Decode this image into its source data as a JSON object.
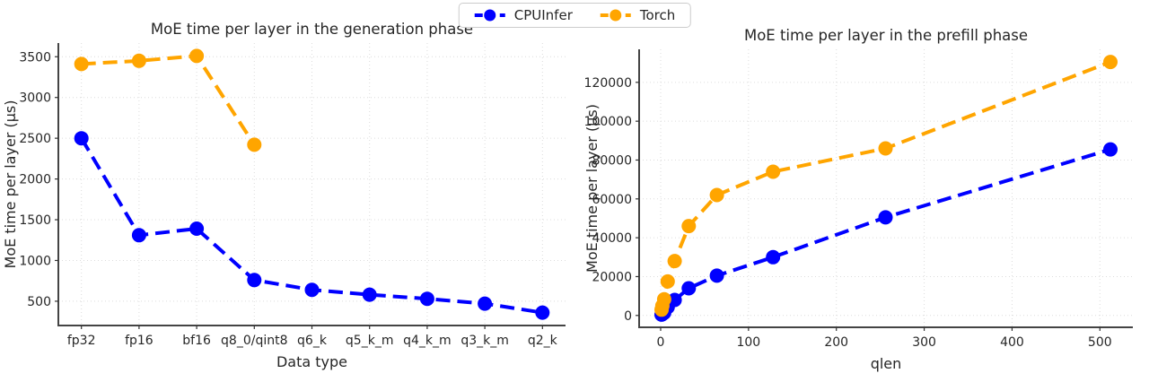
{
  "figure": {
    "background": "#ffffff"
  },
  "legend": {
    "items": [
      {
        "label": "CPUInfer",
        "color": "#0000ff"
      },
      {
        "label": "Torch",
        "color": "#ffa500"
      }
    ]
  },
  "chart_data": [
    {
      "type": "line",
      "title": "MoE time per layer in the generation phase",
      "xlabel": "Data type",
      "ylabel": "MoE time per layer (µs)",
      "categories": [
        "fp32",
        "fp16",
        "bf16",
        "q8_0/qint8",
        "q6_k",
        "q5_k_m",
        "q4_k_m",
        "q3_k_m",
        "q2_k"
      ],
      "series": [
        {
          "name": "CPUInfer",
          "color": "#0000ff",
          "values": [
            2500,
            1310,
            1390,
            760,
            640,
            580,
            530,
            470,
            360
          ]
        },
        {
          "name": "Torch",
          "color": "#ffa500",
          "values": [
            3410,
            3450,
            3510,
            2420,
            null,
            null,
            null,
            null,
            null
          ]
        }
      ],
      "yticks": [
        500,
        1000,
        1500,
        2000,
        2500,
        3000,
        3500
      ],
      "ylim": [
        202,
        3668
      ],
      "grid": true,
      "line_style": "dashed",
      "legend_position": "top-center-figure"
    },
    {
      "type": "line",
      "title": "MoE time per layer in the prefill phase",
      "xlabel": "qlen",
      "ylabel": "MoE time per layer (µs)",
      "x": [
        1,
        2,
        4,
        8,
        16,
        32,
        64,
        128,
        256,
        512
      ],
      "series": [
        {
          "name": "CPUInfer",
          "color": "#0000ff",
          "values": [
            400,
            700,
            1400,
            4300,
            8000,
            14000,
            20500,
            30000,
            50500,
            85500
          ]
        },
        {
          "name": "Torch",
          "color": "#ffa500",
          "values": [
            3000,
            5000,
            8300,
            17500,
            28000,
            46000,
            62000,
            74000,
            86000,
            130500
          ]
        }
      ],
      "xticks": [
        0,
        100,
        200,
        300,
        400,
        500
      ],
      "yticks": [
        0,
        20000,
        40000,
        60000,
        80000,
        100000,
        120000
      ],
      "xlim": [
        -24.5,
        537.5
      ],
      "ylim": [
        -6100,
        137000
      ],
      "grid": true,
      "line_style": "dashed",
      "legend_position": "top-center-figure"
    }
  ]
}
